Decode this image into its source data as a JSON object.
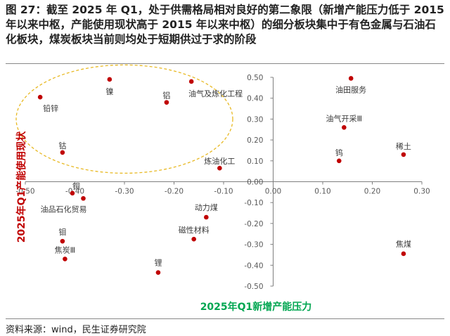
{
  "title": "图 27：截至 2025 年 Q1，处于供需格局相对良好的第二象限（新增产能压力低于 2015 年以来中枢，产能使用现状高于 2015 年以来中枢）的细分板块集中于有色金属与石油石化板块，煤炭板块当前则均处于短期供过于求的阶段",
  "source": "资料来源：wind，民生证券研究院",
  "colors": {
    "point": "#c00000",
    "ellipse": "#e8b923",
    "ylabel": "#c00000",
    "xlabel": "#00a651"
  },
  "chart_data": {
    "type": "scatter",
    "xlabel": "2025年Q1新增产能压力",
    "ylabel": "2025年Q1产能使用现状",
    "xlim": [
      -0.5,
      0.3
    ],
    "ylim": [
      -0.5,
      0.5
    ],
    "xticks": [
      "-0.50",
      "-0.40",
      "-0.30",
      "-0.20",
      "-0.10",
      "0.00",
      "0.10",
      "0.20",
      "0.30"
    ],
    "yticks": [
      "0.50",
      "0.40",
      "0.30",
      "0.20",
      "0.10",
      "0.00",
      "-0.10",
      "-0.20",
      "-0.30",
      "-0.40",
      "-0.50"
    ],
    "points": [
      {
        "label": "镍",
        "x": -0.33,
        "y": 0.49
      },
      {
        "label": "油气及炼化工程",
        "x": -0.165,
        "y": 0.48
      },
      {
        "label": "铅锌",
        "x": -0.47,
        "y": 0.405
      },
      {
        "label": "铝",
        "x": -0.215,
        "y": 0.38
      },
      {
        "label": "钴",
        "x": -0.425,
        "y": 0.14
      },
      {
        "label": "炼油化工",
        "x": -0.108,
        "y": 0.065
      },
      {
        "label": "铜",
        "x": -0.405,
        "y": -0.055
      },
      {
        "label": "油品石化贸易",
        "x": -0.383,
        "y": -0.08
      },
      {
        "label": "动力煤",
        "x": -0.135,
        "y": -0.17
      },
      {
        "label": "磁性材料",
        "x": -0.16,
        "y": -0.275
      },
      {
        "label": "钼",
        "x": -0.425,
        "y": -0.285
      },
      {
        "label": "焦炭Ⅲ",
        "x": -0.42,
        "y": -0.37
      },
      {
        "label": "锂",
        "x": -0.232,
        "y": -0.435
      },
      {
        "label": "油田服务",
        "x": 0.157,
        "y": 0.495
      },
      {
        "label": "油气开采Ⅲ",
        "x": 0.143,
        "y": 0.26
      },
      {
        "label": "稀土",
        "x": 0.263,
        "y": 0.13
      },
      {
        "label": "钨",
        "x": 0.133,
        "y": 0.1
      },
      {
        "label": "焦煤",
        "x": 0.263,
        "y": -0.345
      }
    ]
  }
}
